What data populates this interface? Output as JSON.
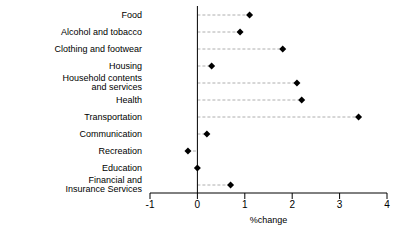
{
  "chart_data": {
    "type": "dot",
    "orientation": "horizontal",
    "x_label": "%change",
    "categories": [
      "Food",
      "Alcohol and tobacco",
      "Clothing and footwear",
      "Housing",
      "Household contents and services",
      "Health",
      "Transportation",
      "Communication",
      "Recreation",
      "Education",
      "Financial and Insurance Services"
    ],
    "values": [
      1.1,
      0.9,
      1.8,
      0.3,
      2.1,
      2.2,
      3.4,
      0.2,
      -0.2,
      0.0,
      0.7
    ],
    "xlim": [
      -1,
      4
    ],
    "xticks": [
      -1,
      0,
      1,
      2,
      3,
      4
    ],
    "color": "#000000",
    "marker": "diamond",
    "line_style": "dashed",
    "grid": false
  }
}
